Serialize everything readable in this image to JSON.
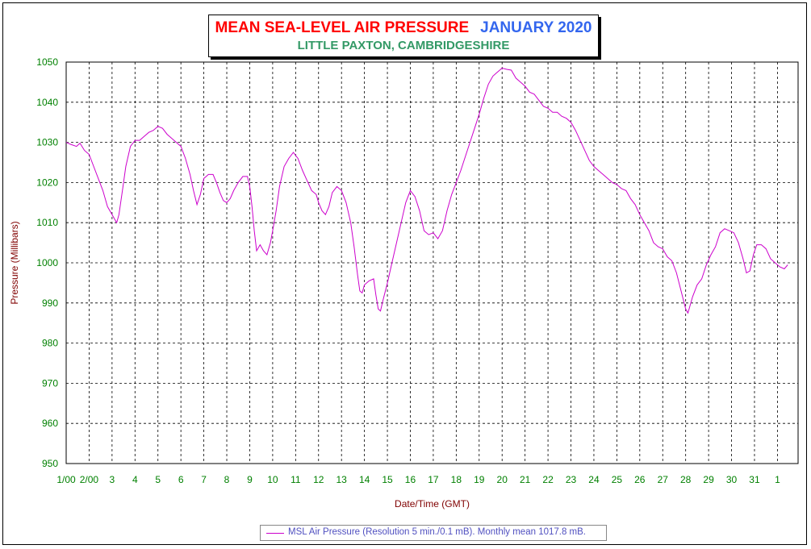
{
  "title": {
    "main": "MEAN SEA-LEVEL AIR PRESSURE",
    "date": "JANUARY 2020",
    "subtitle": "LITTLE PAXTON, CAMBRIDGESHIRE"
  },
  "colors": {
    "title_main": "#ff0000",
    "title_date": "#3366ee",
    "subtitle": "#339966",
    "tick_text": "#008000",
    "axis_label": "#800000",
    "series_line": "#cc00cc",
    "legend_text": "#5050c0"
  },
  "chart_data": {
    "type": "line",
    "title": "MEAN SEA-LEVEL AIR PRESSURE JANUARY 2020",
    "subtitle": "LITTLE PAXTON, CAMBRIDGESHIRE",
    "xlabel": "Date/Time (GMT)",
    "ylabel": "Pressure (Millibars)",
    "ylim": [
      950,
      1050
    ],
    "yticks": [
      950,
      960,
      970,
      980,
      990,
      1000,
      1010,
      1020,
      1030,
      1040,
      1050
    ],
    "xlim": [
      1,
      32.9
    ],
    "xticks": [
      {
        "x": 1,
        "label": "1/00"
      },
      {
        "x": 2,
        "label": "2/00"
      },
      {
        "x": 3,
        "label": "3"
      },
      {
        "x": 4,
        "label": "4"
      },
      {
        "x": 5,
        "label": "5"
      },
      {
        "x": 6,
        "label": "6"
      },
      {
        "x": 7,
        "label": "7"
      },
      {
        "x": 8,
        "label": "8"
      },
      {
        "x": 9,
        "label": "9"
      },
      {
        "x": 10,
        "label": "10"
      },
      {
        "x": 11,
        "label": "11"
      },
      {
        "x": 12,
        "label": "12"
      },
      {
        "x": 13,
        "label": "13"
      },
      {
        "x": 14,
        "label": "14"
      },
      {
        "x": 15,
        "label": "15"
      },
      {
        "x": 16,
        "label": "16"
      },
      {
        "x": 17,
        "label": "17"
      },
      {
        "x": 18,
        "label": "18"
      },
      {
        "x": 19,
        "label": "19"
      },
      {
        "x": 20,
        "label": "20"
      },
      {
        "x": 21,
        "label": "21"
      },
      {
        "x": 22,
        "label": "22"
      },
      {
        "x": 23,
        "label": "23"
      },
      {
        "x": 24,
        "label": "24"
      },
      {
        "x": 25,
        "label": "25"
      },
      {
        "x": 26,
        "label": "26"
      },
      {
        "x": 27,
        "label": "27"
      },
      {
        "x": 28,
        "label": "28"
      },
      {
        "x": 29,
        "label": "29"
      },
      {
        "x": 30,
        "label": "30"
      },
      {
        "x": 31,
        "label": "31"
      },
      {
        "x": 32,
        "label": "1"
      }
    ],
    "grid": true,
    "legend_position": "bottom-center",
    "series": [
      {
        "name": "MSL Air Pressure (Resolution 5 min./0.1 mB). Monthly mean 1017.8 mB.",
        "color": "#cc00cc",
        "points": [
          [
            1.0,
            1030.0
          ],
          [
            1.2,
            1029.5
          ],
          [
            1.45,
            1029.0
          ],
          [
            1.6,
            1029.8
          ],
          [
            1.8,
            1028.0
          ],
          [
            2.0,
            1027.0
          ],
          [
            2.2,
            1024.0
          ],
          [
            2.4,
            1021.0
          ],
          [
            2.6,
            1018.0
          ],
          [
            2.8,
            1014.0
          ],
          [
            3.0,
            1012.0
          ],
          [
            3.1,
            1011.0
          ],
          [
            3.2,
            1010.0
          ],
          [
            3.3,
            1012.0
          ],
          [
            3.45,
            1018.0
          ],
          [
            3.6,
            1024.0
          ],
          [
            3.8,
            1029.0
          ],
          [
            4.0,
            1030.5
          ],
          [
            4.2,
            1030.5
          ],
          [
            4.4,
            1031.5
          ],
          [
            4.6,
            1032.5
          ],
          [
            4.8,
            1033.0
          ],
          [
            5.0,
            1034.0
          ],
          [
            5.2,
            1033.5
          ],
          [
            5.4,
            1032.0
          ],
          [
            5.6,
            1031.0
          ],
          [
            5.8,
            1030.0
          ],
          [
            6.0,
            1029.0
          ],
          [
            6.2,
            1026.0
          ],
          [
            6.4,
            1022.0
          ],
          [
            6.55,
            1018.0
          ],
          [
            6.7,
            1014.5
          ],
          [
            6.85,
            1017.0
          ],
          [
            7.0,
            1021.0
          ],
          [
            7.2,
            1022.0
          ],
          [
            7.4,
            1022.0
          ],
          [
            7.55,
            1020.0
          ],
          [
            7.7,
            1017.5
          ],
          [
            7.85,
            1015.5
          ],
          [
            8.0,
            1015.0
          ],
          [
            8.15,
            1016.0
          ],
          [
            8.3,
            1018.0
          ],
          [
            8.5,
            1020.0
          ],
          [
            8.7,
            1021.5
          ],
          [
            8.9,
            1021.5
          ],
          [
            9.0,
            1019.0
          ],
          [
            9.1,
            1014.0
          ],
          [
            9.2,
            1008.0
          ],
          [
            9.3,
            1003.0
          ],
          [
            9.45,
            1004.5
          ],
          [
            9.6,
            1003.0
          ],
          [
            9.75,
            1002.0
          ],
          [
            9.9,
            1005.0
          ],
          [
            10.0,
            1008.0
          ],
          [
            10.15,
            1013.0
          ],
          [
            10.3,
            1019.0
          ],
          [
            10.5,
            1024.0
          ],
          [
            10.7,
            1026.0
          ],
          [
            10.9,
            1027.5
          ],
          [
            11.1,
            1026.0
          ],
          [
            11.3,
            1023.0
          ],
          [
            11.5,
            1020.5
          ],
          [
            11.7,
            1018.0
          ],
          [
            11.9,
            1017.0
          ],
          [
            12.0,
            1015.0
          ],
          [
            12.15,
            1013.0
          ],
          [
            12.3,
            1012.0
          ],
          [
            12.45,
            1014.0
          ],
          [
            12.6,
            1017.5
          ],
          [
            12.8,
            1019.0
          ],
          [
            13.0,
            1018.0
          ],
          [
            13.2,
            1015.0
          ],
          [
            13.4,
            1010.0
          ],
          [
            13.55,
            1004.0
          ],
          [
            13.7,
            997.0
          ],
          [
            13.8,
            993.0
          ],
          [
            13.9,
            992.5
          ],
          [
            14.0,
            994.5
          ],
          [
            14.2,
            995.5
          ],
          [
            14.4,
            996.0
          ],
          [
            14.5,
            992.0
          ],
          [
            14.6,
            988.5
          ],
          [
            14.7,
            988.0
          ],
          [
            14.8,
            990.5
          ],
          [
            15.0,
            995.0
          ],
          [
            15.2,
            1000.0
          ],
          [
            15.4,
            1005.0
          ],
          [
            15.6,
            1010.0
          ],
          [
            15.8,
            1015.0
          ],
          [
            16.0,
            1018.0
          ],
          [
            16.2,
            1016.5
          ],
          [
            16.4,
            1013.0
          ],
          [
            16.6,
            1008.0
          ],
          [
            16.8,
            1007.0
          ],
          [
            17.0,
            1007.5
          ],
          [
            17.2,
            1006.0
          ],
          [
            17.4,
            1008.0
          ],
          [
            17.6,
            1013.0
          ],
          [
            17.8,
            1017.0
          ],
          [
            18.0,
            1020.0
          ],
          [
            18.2,
            1023.0
          ],
          [
            18.4,
            1026.5
          ],
          [
            18.6,
            1030.0
          ],
          [
            18.8,
            1033.5
          ],
          [
            19.0,
            1037.0
          ],
          [
            19.2,
            1041.0
          ],
          [
            19.4,
            1044.5
          ],
          [
            19.6,
            1046.5
          ],
          [
            19.8,
            1047.5
          ],
          [
            20.0,
            1048.5
          ],
          [
            20.2,
            1048.2
          ],
          [
            20.4,
            1048.0
          ],
          [
            20.6,
            1046.0
          ],
          [
            20.8,
            1045.0
          ],
          [
            21.0,
            1044.0
          ],
          [
            21.2,
            1042.5
          ],
          [
            21.4,
            1042.0
          ],
          [
            21.6,
            1040.5
          ],
          [
            21.8,
            1039.0
          ],
          [
            22.0,
            1038.5
          ],
          [
            22.2,
            1037.5
          ],
          [
            22.4,
            1037.5
          ],
          [
            22.6,
            1036.5
          ],
          [
            22.8,
            1036.0
          ],
          [
            23.0,
            1035.0
          ],
          [
            23.2,
            1033.0
          ],
          [
            23.4,
            1030.5
          ],
          [
            23.6,
            1028.0
          ],
          [
            23.8,
            1025.5
          ],
          [
            24.0,
            1024.0
          ],
          [
            24.2,
            1023.0
          ],
          [
            24.4,
            1022.0
          ],
          [
            24.6,
            1021.0
          ],
          [
            24.8,
            1020.0
          ],
          [
            25.0,
            1019.5
          ],
          [
            25.2,
            1018.5
          ],
          [
            25.4,
            1018.0
          ],
          [
            25.6,
            1016.0
          ],
          [
            25.8,
            1014.5
          ],
          [
            26.0,
            1012.0
          ],
          [
            26.2,
            1010.0
          ],
          [
            26.4,
            1008.0
          ],
          [
            26.6,
            1005.0
          ],
          [
            26.8,
            1004.0
          ],
          [
            27.0,
            1003.5
          ],
          [
            27.2,
            1001.5
          ],
          [
            27.4,
            1000.5
          ],
          [
            27.6,
            997.5
          ],
          [
            27.8,
            993.0
          ],
          [
            28.0,
            988.5
          ],
          [
            28.1,
            987.5
          ],
          [
            28.3,
            991.5
          ],
          [
            28.5,
            994.5
          ],
          [
            28.7,
            996.0
          ],
          [
            28.9,
            999.5
          ],
          [
            29.1,
            1002.0
          ],
          [
            29.3,
            1004.0
          ],
          [
            29.5,
            1007.5
          ],
          [
            29.7,
            1008.5
          ],
          [
            29.9,
            1008.0
          ],
          [
            30.1,
            1007.5
          ],
          [
            30.3,
            1005.0
          ],
          [
            30.5,
            1001.0
          ],
          [
            30.65,
            997.5
          ],
          [
            30.8,
            998.0
          ],
          [
            30.95,
            1002.0
          ],
          [
            31.1,
            1004.5
          ],
          [
            31.3,
            1004.5
          ],
          [
            31.5,
            1003.5
          ],
          [
            31.7,
            1001.0
          ],
          [
            31.9,
            1000.0
          ],
          [
            32.1,
            999.0
          ],
          [
            32.3,
            998.5
          ],
          [
            32.45,
            999.5
          ]
        ]
      }
    ]
  }
}
